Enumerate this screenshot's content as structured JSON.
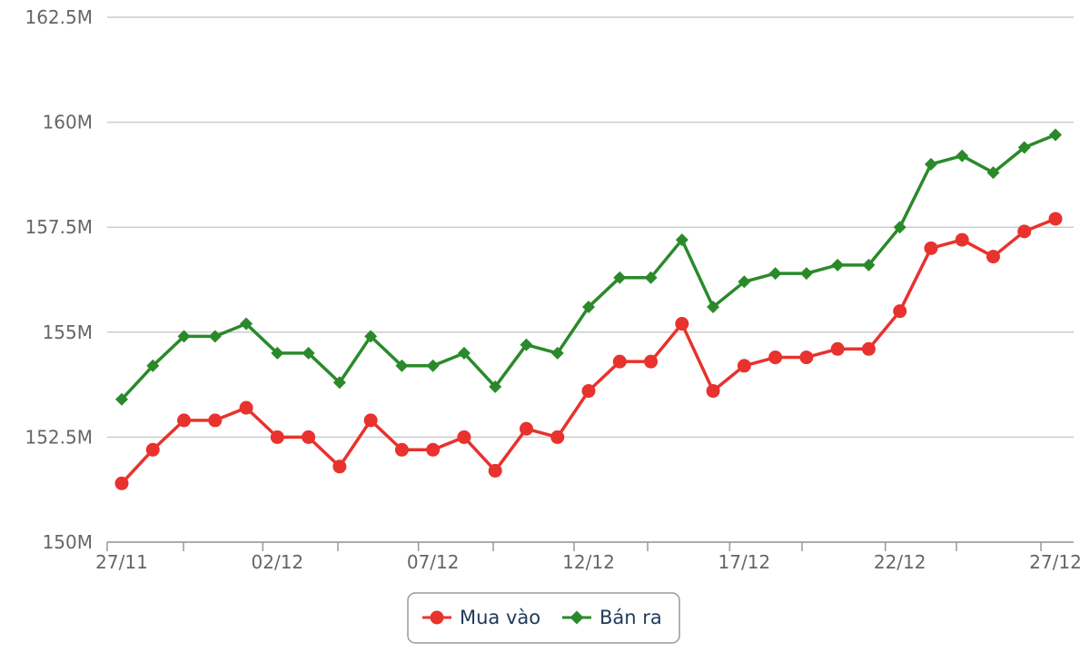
{
  "chart_data": {
    "type": "line",
    "title": "",
    "xlabel": "",
    "ylabel": "",
    "ylim": [
      150,
      162.5
    ],
    "y_ticks": [
      "150M",
      "152.5M",
      "155M",
      "157.5M",
      "160M",
      "162.5M"
    ],
    "y_tick_values": [
      150,
      152.5,
      155,
      157.5,
      160,
      162.5
    ],
    "x": [
      "27/11",
      "28/11",
      "29/11",
      "30/11",
      "01/12",
      "02/12",
      "03/12",
      "04/12",
      "05/12",
      "06/12",
      "07/12",
      "08/12",
      "09/12",
      "10/12",
      "11/12",
      "12/12",
      "13/12",
      "14/12",
      "15/12",
      "16/12",
      "17/12",
      "18/12",
      "19/12",
      "20/12",
      "21/12",
      "22/12",
      "23/12",
      "24/12",
      "25/12",
      "26/12",
      "27/12"
    ],
    "x_tick_labels": [
      "27/11",
      "02/12",
      "07/12",
      "12/12",
      "17/12",
      "22/12",
      "27/12"
    ],
    "x_tick_label_indices": [
      0,
      5,
      10,
      15,
      20,
      25,
      30
    ],
    "grid": true,
    "legend_position": "bottom-center",
    "series": [
      {
        "name": "Mua vào",
        "color": "#e8322d",
        "marker": "circle",
        "values": [
          151.4,
          152.2,
          152.9,
          152.9,
          153.2,
          152.5,
          152.5,
          151.8,
          152.9,
          152.2,
          152.2,
          152.5,
          151.7,
          152.7,
          152.5,
          153.6,
          154.3,
          154.3,
          155.2,
          153.6,
          154.2,
          154.4,
          154.4,
          154.6,
          154.6,
          155.5,
          157.0,
          157.2,
          156.8,
          157.4,
          157.7
        ]
      },
      {
        "name": "Bán ra",
        "color": "#2a8a2a",
        "marker": "diamond",
        "values": [
          153.4,
          154.2,
          154.9,
          154.9,
          155.2,
          154.5,
          154.5,
          153.8,
          154.9,
          154.2,
          154.2,
          154.5,
          153.7,
          154.7,
          154.5,
          155.6,
          156.3,
          156.3,
          157.2,
          155.6,
          156.2,
          156.4,
          156.4,
          156.6,
          156.6,
          157.5,
          159.0,
          159.2,
          158.8,
          159.4,
          159.7
        ]
      }
    ]
  }
}
